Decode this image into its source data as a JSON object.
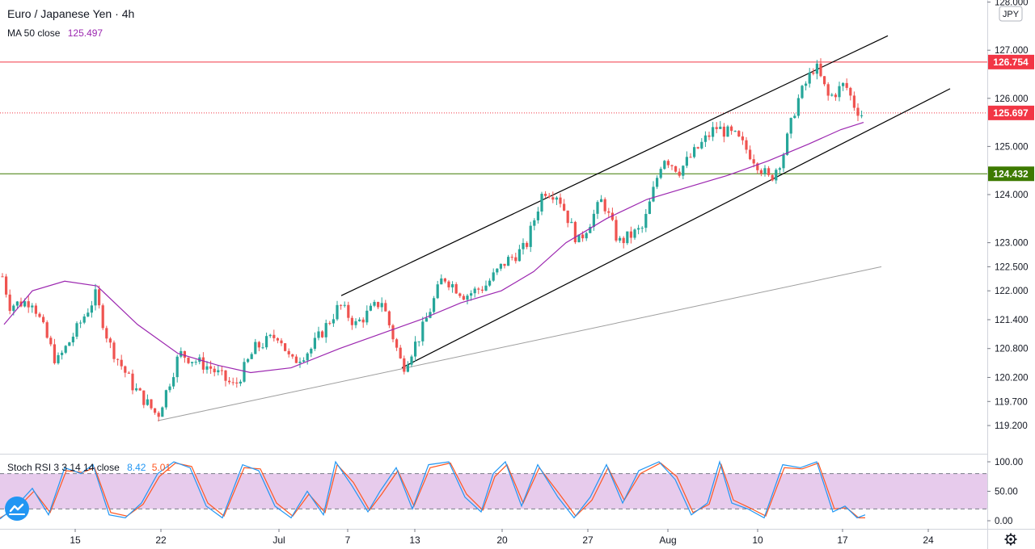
{
  "header": {
    "symbol": "Euro / Japanese Yen",
    "timeframe": "4h",
    "ma_label": "MA 50 close",
    "ma_value": "125.497",
    "currency_badge": "JPY"
  },
  "oscillator": {
    "label": "Stoch RSI 3 3 14 14 close",
    "k_value": "8.42",
    "d_value": "5.01",
    "ticks": [
      "100.00",
      "50.00",
      "0.00"
    ],
    "upper_band": 80,
    "lower_band": 20
  },
  "colors": {
    "up": "#26a69a",
    "down": "#ef5350",
    "ma": "#9c27b0",
    "resistance": "#f23645",
    "support": "#3d7a00",
    "channel": "#000000",
    "trendline": "#9e9e9e",
    "k_line": "#2196f3",
    "d_line": "#ff5722",
    "band_fill": "#e1bee7"
  },
  "chart_data": {
    "type": "candlestick",
    "instrument": "Euro / Japanese Yen",
    "interval": "4h",
    "y_ticks": [
      128.0,
      127.0,
      126.0,
      125.0,
      124.0,
      123.0,
      122.5,
      122.0,
      121.4,
      120.8,
      120.2,
      119.7,
      119.2
    ],
    "y_tick_labels": [
      "128.000",
      "127.000",
      "126.000",
      "125.000",
      "124.000",
      "123.000",
      "122.500",
      "122.000",
      "121.400",
      "120.800",
      "120.200",
      "119.700",
      "119.200"
    ],
    "x_labels": [
      "15",
      "22",
      "Jul",
      "7",
      "13",
      "20",
      "27",
      "Aug",
      "10",
      "17",
      "24"
    ],
    "price_lines": [
      {
        "label": "126.754",
        "value": 126.754,
        "style": "solid",
        "color": "resistance"
      },
      {
        "label": "125.697",
        "value": 125.697,
        "style": "dotted",
        "color": "resistance"
      },
      {
        "label": "124.432",
        "value": 124.432,
        "style": "solid",
        "color": "support"
      }
    ],
    "price_path": [
      [
        0,
        122.5
      ],
      [
        12,
        121.7
      ],
      [
        40,
        121.8
      ],
      [
        70,
        120.5
      ],
      [
        95,
        121.2
      ],
      [
        118,
        121.9
      ],
      [
        135,
        120.9
      ],
      [
        165,
        120.0
      ],
      [
        195,
        119.4
      ],
      [
        222,
        120.7
      ],
      [
        260,
        120.4
      ],
      [
        290,
        120.0
      ],
      [
        315,
        120.8
      ],
      [
        345,
        121.1
      ],
      [
        360,
        120.5
      ],
      [
        385,
        120.8
      ],
      [
        420,
        121.7
      ],
      [
        440,
        121.3
      ],
      [
        472,
        121.8
      ],
      [
        498,
        120.4
      ],
      [
        520,
        121.1
      ],
      [
        548,
        122.3
      ],
      [
        575,
        121.9
      ],
      [
        600,
        122.1
      ],
      [
        625,
        122.6
      ],
      [
        650,
        122.9
      ],
      [
        672,
        124.1
      ],
      [
        690,
        124.0
      ],
      [
        715,
        123.0
      ],
      [
        745,
        123.9
      ],
      [
        765,
        123.0
      ],
      [
        795,
        123.3
      ],
      [
        820,
        124.8
      ],
      [
        840,
        124.5
      ],
      [
        860,
        124.9
      ],
      [
        885,
        125.4
      ],
      [
        910,
        125.2
      ],
      [
        930,
        124.8
      ],
      [
        952,
        124.3
      ],
      [
        968,
        124.8
      ],
      [
        985,
        125.9
      ],
      [
        1008,
        126.7
      ],
      [
        1025,
        126.0
      ],
      [
        1045,
        126.3
      ],
      [
        1058,
        125.8
      ],
      [
        1070,
        125.6
      ]
    ],
    "ma50_path": [
      [
        5,
        121.3
      ],
      [
        40,
        122.0
      ],
      [
        80,
        122.2
      ],
      [
        120,
        122.1
      ],
      [
        170,
        121.3
      ],
      [
        220,
        120.7
      ],
      [
        270,
        120.45
      ],
      [
        310,
        120.3
      ],
      [
        360,
        120.4
      ],
      [
        420,
        120.8
      ],
      [
        470,
        121.1
      ],
      [
        520,
        121.4
      ],
      [
        570,
        121.75
      ],
      [
        620,
        122.0
      ],
      [
        660,
        122.4
      ],
      [
        700,
        123.0
      ],
      [
        750,
        123.5
      ],
      [
        800,
        123.9
      ],
      [
        850,
        124.15
      ],
      [
        900,
        124.4
      ],
      [
        950,
        124.7
      ],
      [
        1000,
        125.05
      ],
      [
        1040,
        125.35
      ],
      [
        1068,
        125.5
      ]
    ],
    "channel_upper": [
      [
        422,
        121.9
      ],
      [
        1098,
        127.3
      ]
    ],
    "channel_lower": [
      [
        497,
        120.4
      ],
      [
        1175,
        126.2
      ]
    ],
    "long_trendline": [
      [
        195,
        119.3
      ],
      [
        1090,
        122.5
      ]
    ],
    "stoch_k": [
      [
        0,
        3
      ],
      [
        20,
        25
      ],
      [
        40,
        55
      ],
      [
        60,
        10
      ],
      [
        80,
        90
      ],
      [
        100,
        80
      ],
      [
        115,
        95
      ],
      [
        135,
        10
      ],
      [
        155,
        5
      ],
      [
        175,
        30
      ],
      [
        195,
        80
      ],
      [
        215,
        100
      ],
      [
        235,
        90
      ],
      [
        255,
        25
      ],
      [
        275,
        5
      ],
      [
        300,
        95
      ],
      [
        320,
        85
      ],
      [
        340,
        25
      ],
      [
        360,
        5
      ],
      [
        380,
        50
      ],
      [
        400,
        10
      ],
      [
        415,
        100
      ],
      [
        435,
        60
      ],
      [
        455,
        15
      ],
      [
        470,
        50
      ],
      [
        490,
        90
      ],
      [
        510,
        20
      ],
      [
        530,
        95
      ],
      [
        555,
        100
      ],
      [
        575,
        40
      ],
      [
        595,
        15
      ],
      [
        610,
        80
      ],
      [
        625,
        100
      ],
      [
        645,
        25
      ],
      [
        665,
        95
      ],
      [
        690,
        40
      ],
      [
        710,
        5
      ],
      [
        730,
        40
      ],
      [
        750,
        95
      ],
      [
        770,
        30
      ],
      [
        790,
        85
      ],
      [
        815,
        100
      ],
      [
        835,
        70
      ],
      [
        855,
        10
      ],
      [
        875,
        30
      ],
      [
        890,
        100
      ],
      [
        905,
        30
      ],
      [
        925,
        20
      ],
      [
        945,
        5
      ],
      [
        968,
        95
      ],
      [
        990,
        90
      ],
      [
        1010,
        100
      ],
      [
        1030,
        15
      ],
      [
        1045,
        25
      ],
      [
        1060,
        5
      ],
      [
        1070,
        10
      ]
    ],
    "stoch_d": [
      [
        0,
        5
      ],
      [
        22,
        22
      ],
      [
        42,
        50
      ],
      [
        62,
        14
      ],
      [
        82,
        85
      ],
      [
        102,
        82
      ],
      [
        117,
        90
      ],
      [
        137,
        14
      ],
      [
        157,
        8
      ],
      [
        177,
        28
      ],
      [
        197,
        75
      ],
      [
        217,
        98
      ],
      [
        237,
        92
      ],
      [
        257,
        30
      ],
      [
        277,
        8
      ],
      [
        302,
        90
      ],
      [
        322,
        88
      ],
      [
        342,
        30
      ],
      [
        362,
        8
      ],
      [
        382,
        45
      ],
      [
        402,
        14
      ],
      [
        417,
        95
      ],
      [
        437,
        65
      ],
      [
        457,
        18
      ],
      [
        472,
        45
      ],
      [
        492,
        85
      ],
      [
        512,
        25
      ],
      [
        532,
        90
      ],
      [
        557,
        98
      ],
      [
        577,
        45
      ],
      [
        597,
        18
      ],
      [
        612,
        75
      ],
      [
        627,
        95
      ],
      [
        647,
        30
      ],
      [
        667,
        90
      ],
      [
        692,
        45
      ],
      [
        712,
        8
      ],
      [
        732,
        35
      ],
      [
        752,
        90
      ],
      [
        772,
        35
      ],
      [
        792,
        80
      ],
      [
        817,
        98
      ],
      [
        837,
        75
      ],
      [
        857,
        14
      ],
      [
        877,
        28
      ],
      [
        892,
        95
      ],
      [
        907,
        35
      ],
      [
        927,
        22
      ],
      [
        947,
        8
      ],
      [
        970,
        90
      ],
      [
        992,
        88
      ],
      [
        1012,
        98
      ],
      [
        1032,
        20
      ],
      [
        1047,
        22
      ],
      [
        1062,
        5
      ],
      [
        1070,
        5
      ]
    ]
  }
}
